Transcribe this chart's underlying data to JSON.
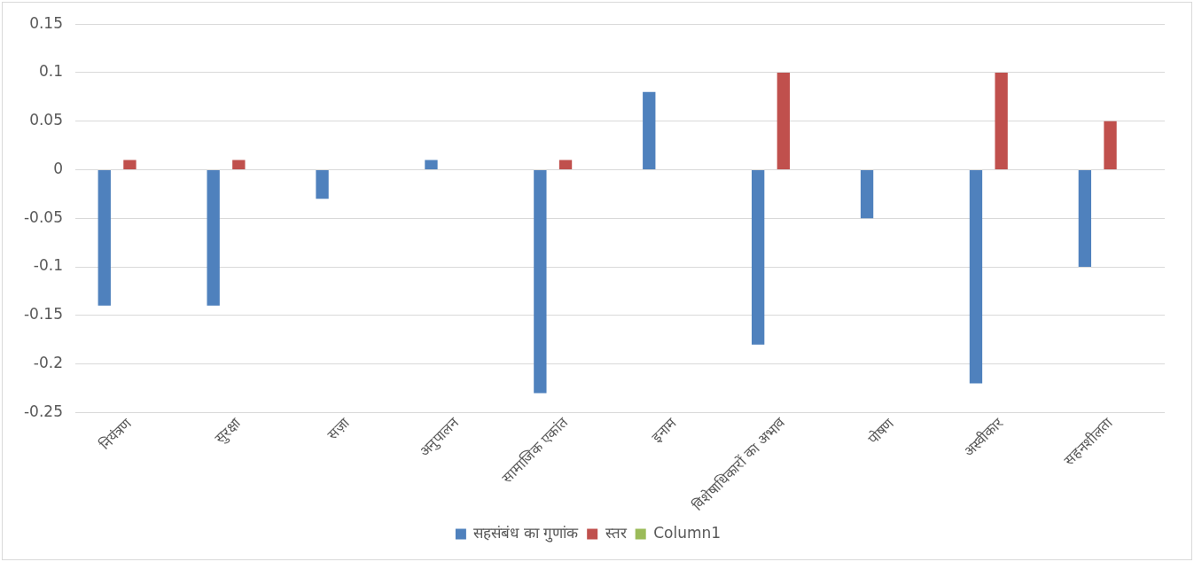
{
  "chart_data": {
    "type": "bar",
    "categories": [
      "नियंत्रण",
      "सुरक्षा",
      "सज़ा",
      "अनुपालन",
      "सामाजिक एकांत",
      "इनाम",
      "विशेषाधिकारों का अभाव",
      "पोषण",
      "अस्वीकार",
      "सहनशीलता"
    ],
    "series": [
      {
        "name": "सहसंबंध का गुणांक",
        "color": "#4f81bd",
        "values": [
          -0.14,
          -0.14,
          -0.03,
          0.01,
          -0.23,
          0.08,
          -0.18,
          -0.05,
          -0.22,
          -0.1
        ]
      },
      {
        "name": "स्तर",
        "color": "#c0504d",
        "values": [
          0.01,
          0.01,
          null,
          null,
          0.01,
          null,
          0.1,
          null,
          0.1,
          0.05
        ]
      },
      {
        "name": "Column1",
        "color": "#9bbb59",
        "values": [
          null,
          null,
          null,
          null,
          null,
          null,
          null,
          null,
          null,
          null
        ]
      }
    ],
    "ylim": [
      -0.25,
      0.15
    ],
    "yticks": [
      -0.25,
      -0.2,
      -0.15,
      -0.1,
      -0.05,
      0,
      0.05,
      0.1,
      0.15
    ],
    "grid": "y",
    "legend": "bottom"
  }
}
